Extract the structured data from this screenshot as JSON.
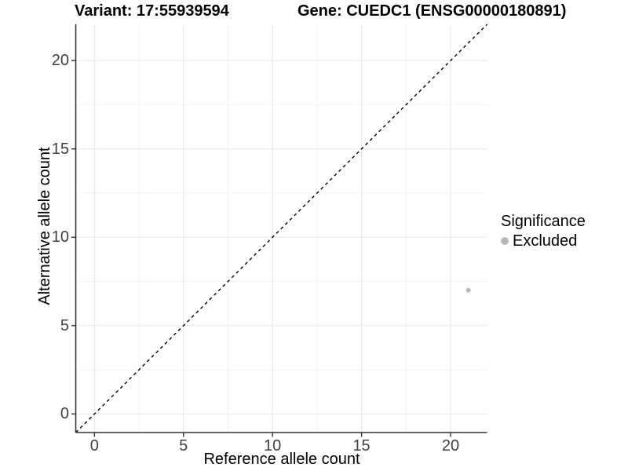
{
  "titles": {
    "variant": "Variant: 17:55939594",
    "gene": "Gene: CUEDC1 (ENSG00000180891)"
  },
  "axes": {
    "x_label": "Reference allele count",
    "y_label": "Alternative allele count"
  },
  "legend": {
    "title": "Significance",
    "items": [
      {
        "label": "Excluded",
        "color": "#b8b8b8"
      }
    ]
  },
  "colors": {
    "background": "#ffffff",
    "axis_line": "#333333",
    "tick_text": "#404040",
    "grid_major": "#e8e8e8",
    "grid_minor": "#f4f4f4",
    "identity_line": "#000000",
    "point": "#b8b8b8"
  },
  "chart_data": {
    "type": "scatter",
    "title_left": "Variant: 17:55939594",
    "title_right": "Gene: CUEDC1 (ENSG00000180891)",
    "xlabel": "Reference allele count",
    "ylabel": "Alternative allele count",
    "xlim": [
      -1.05,
      22.05
    ],
    "ylim": [
      -1.05,
      22.05
    ],
    "x_ticks": [
      0,
      5,
      10,
      15,
      20
    ],
    "y_ticks": [
      0,
      5,
      10,
      15,
      20
    ],
    "grid": {
      "major": true,
      "minor": true
    },
    "legend_position": "right",
    "reference_line": {
      "type": "identity",
      "equation": "y = x",
      "style": "dashed",
      "color": "#000000"
    },
    "series": [
      {
        "name": "Excluded",
        "color": "#b8b8b8",
        "marker": "circle",
        "points": [
          {
            "x": 21,
            "y": 7
          }
        ]
      }
    ]
  }
}
